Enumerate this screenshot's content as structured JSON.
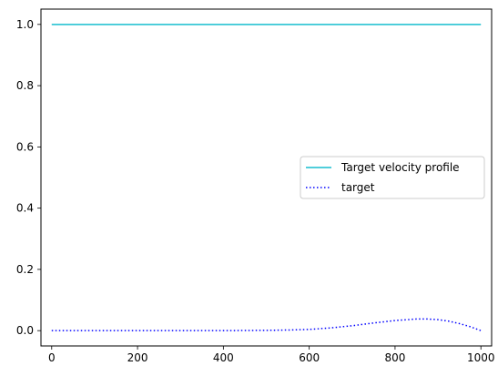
{
  "chart_data": {
    "type": "line",
    "title": "",
    "xlabel": "",
    "ylabel": "",
    "xlim": [
      -25,
      1025
    ],
    "ylim": [
      -0.05,
      1.05
    ],
    "xticks": [
      0,
      200,
      400,
      600,
      800,
      1000
    ],
    "yticks": [
      0.0,
      0.2,
      0.4,
      0.6,
      0.8,
      1.0
    ],
    "xtick_labels": [
      "0",
      "200",
      "400",
      "600",
      "800",
      "1000"
    ],
    "ytick_labels": [
      "0.0",
      "0.2",
      "0.4",
      "0.6",
      "0.8",
      "1.0"
    ],
    "grid": false,
    "legend_position": "center-right",
    "series": [
      {
        "name": "Target velocity profile",
        "color": "#17becf",
        "style": "solid",
        "x": [
          0,
          1000
        ],
        "y": [
          1.0,
          1.0
        ]
      },
      {
        "name": "target",
        "color": "#0000ff",
        "style": "dotted",
        "x": [
          0,
          100,
          200,
          300,
          400,
          500,
          550,
          600,
          650,
          700,
          750,
          800,
          850,
          875,
          900,
          925,
          950,
          975,
          1000
        ],
        "y": [
          0.0,
          0.0,
          0.0,
          0.0,
          0.0,
          0.001,
          0.002,
          0.004,
          0.009,
          0.016,
          0.025,
          0.033,
          0.038,
          0.038,
          0.036,
          0.031,
          0.023,
          0.013,
          0.0
        ]
      }
    ]
  }
}
